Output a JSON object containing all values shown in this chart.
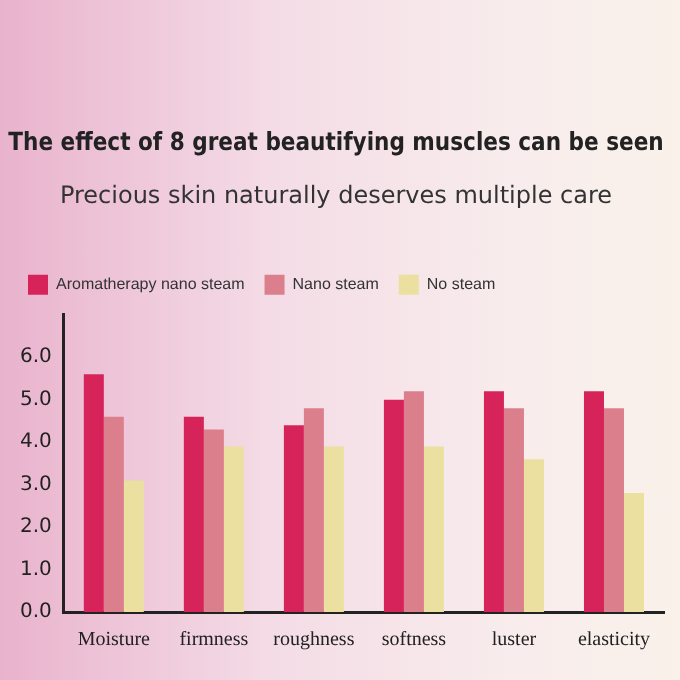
{
  "chart_data": {
    "type": "bar",
    "title": "The effect of 8 great beautifying muscles can be seen",
    "subtitle": "Precious skin naturally deserves multiple care",
    "categories": [
      "Moisture",
      "firmness",
      "roughness",
      "softness",
      "luster",
      "elasticity"
    ],
    "series": [
      {
        "name": "Aromatherapy nano steam",
        "color": "#d6245a",
        "values": [
          5.6,
          4.6,
          4.4,
          5.0,
          5.2,
          5.2
        ]
      },
      {
        "name": "Nano steam",
        "color": "#dc7f8c",
        "values": [
          4.6,
          4.3,
          4.8,
          5.2,
          4.8,
          4.8
        ]
      },
      {
        "name": "No steam",
        "color": "#ece0a0",
        "values": [
          3.1,
          3.9,
          3.9,
          3.9,
          3.6,
          2.8
        ]
      }
    ],
    "ylim": [
      0,
      7
    ],
    "yticks": [
      {
        "value": 0,
        "label": "0.0"
      },
      {
        "value": 1,
        "label": "1.0"
      },
      {
        "value": 2,
        "label": "2.0"
      },
      {
        "value": 3,
        "label": "3.0"
      },
      {
        "value": 4,
        "label": "4.0"
      },
      {
        "value": 5,
        "label": "5.0"
      },
      {
        "value": 6,
        "label": "6.0"
      }
    ],
    "grid": false,
    "legend": "top left"
  }
}
